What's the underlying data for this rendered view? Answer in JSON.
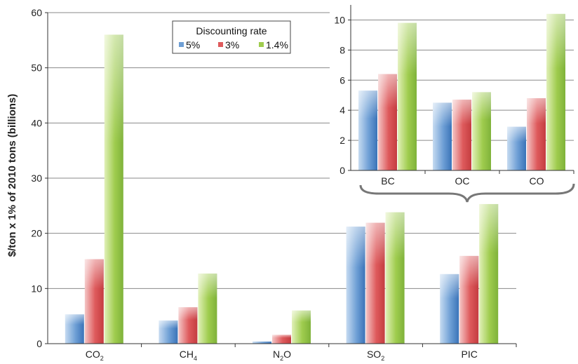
{
  "chart_data": [
    {
      "type": "bar",
      "categories": [
        "CO2",
        "CH4",
        "N2O",
        "SO2",
        "PIC"
      ],
      "category_labels": [
        {
          "base": "CO",
          "sub": "2"
        },
        {
          "base": "CH",
          "sub": "4"
        },
        {
          "base": "N",
          "sub": "2",
          "rest": "O"
        },
        {
          "base": "SO",
          "sub": "2"
        },
        {
          "base": "PIC",
          "sub": ""
        }
      ],
      "series": [
        {
          "name": "5%",
          "values": [
            5.3,
            4.2,
            0.4,
            21.2,
            12.6
          ]
        },
        {
          "name": "3%",
          "values": [
            15.3,
            6.6,
            1.6,
            21.9,
            15.9
          ]
        },
        {
          "name": "1.4%",
          "values": [
            56.0,
            12.7,
            6.0,
            23.8,
            25.3
          ]
        }
      ],
      "ylabel": "$/ton x 1% of 2010 tons (billions)",
      "ylim": [
        0,
        60
      ],
      "yticks": [
        0,
        10,
        20,
        30,
        40,
        50,
        60
      ],
      "grid": true,
      "legend": {
        "title": "Discounting rate",
        "placement": "top-center"
      }
    },
    {
      "type": "bar",
      "categories": [
        "BC",
        "OC",
        "CO"
      ],
      "series": [
        {
          "name": "5%",
          "values": [
            5.3,
            4.5,
            2.9
          ]
        },
        {
          "name": "3%",
          "values": [
            6.4,
            4.7,
            4.8
          ]
        },
        {
          "name": "1.4%",
          "values": [
            9.8,
            5.2,
            10.4
          ]
        }
      ],
      "ylim": [
        0,
        11
      ],
      "yticks": [
        0,
        2,
        4,
        6,
        8,
        10
      ],
      "grid": true,
      "placement": "inset-top-right"
    }
  ],
  "colors": {
    "series": [
      "#6e9fd5",
      "#de5a5c",
      "#9fcc4e"
    ],
    "series_light": [
      "#c6dbf1",
      "#f4c6c6",
      "#e1f0b8"
    ],
    "series_dark": [
      "#3a73b8",
      "#c43d40",
      "#7fb23a"
    ],
    "grid": "#8a8a8a",
    "axis": "#333333",
    "brace": "#777777"
  }
}
